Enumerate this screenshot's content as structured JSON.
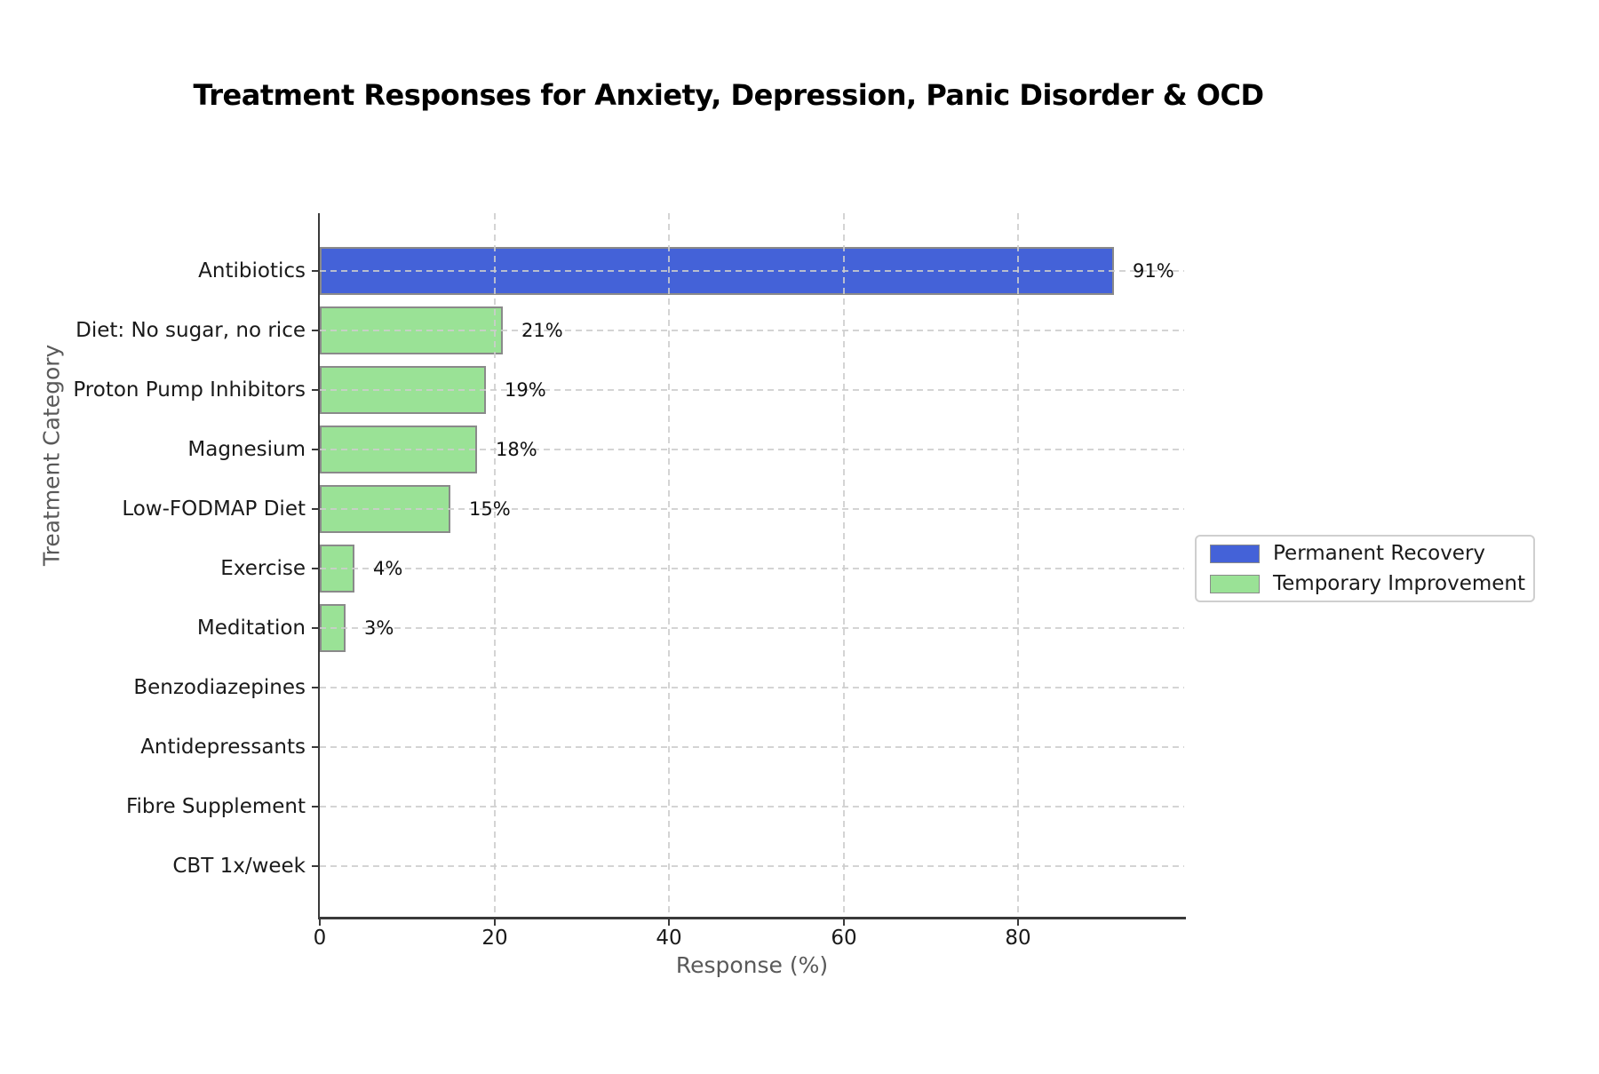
{
  "chart_data": {
    "type": "bar",
    "orientation": "horizontal",
    "title": "Treatment Responses for Anxiety, Depression, Panic Disorder & OCD",
    "xlabel": "Response (%)",
    "ylabel": "Treatment Category",
    "xlim": [
      0,
      99
    ],
    "xticks": [
      0,
      20,
      40,
      60,
      80
    ],
    "grid": true,
    "categories": [
      "Antibiotics",
      "Diet: No sugar, no rice",
      "Proton Pump Inhibitors",
      "Magnesium",
      "Low-FODMAP Diet",
      "Exercise",
      "Meditation",
      "Benzodiazepines",
      "Antidepressants",
      "Fibre Supplement",
      "CBT 1x/week"
    ],
    "bars": [
      {
        "category": "Antibiotics",
        "value": 91,
        "label": "91%",
        "group": "Permanent Recovery"
      },
      {
        "category": "Diet: No sugar, no rice",
        "value": 21,
        "label": "21%",
        "group": "Temporary Improvement"
      },
      {
        "category": "Proton Pump Inhibitors",
        "value": 19,
        "label": "19%",
        "group": "Temporary Improvement"
      },
      {
        "category": "Magnesium",
        "value": 18,
        "label": "18%",
        "group": "Temporary Improvement"
      },
      {
        "category": "Low-FODMAP Diet",
        "value": 15,
        "label": "15%",
        "group": "Temporary Improvement"
      },
      {
        "category": "Exercise",
        "value": 4,
        "label": "4%",
        "group": "Temporary Improvement"
      },
      {
        "category": "Meditation",
        "value": 3,
        "label": "3%",
        "group": "Temporary Improvement"
      },
      {
        "category": "Benzodiazepines",
        "value": 0,
        "label": "",
        "group": "Temporary Improvement"
      },
      {
        "category": "Antidepressants",
        "value": 0,
        "label": "",
        "group": "Temporary Improvement"
      },
      {
        "category": "Fibre Supplement",
        "value": 0,
        "label": "",
        "group": "Temporary Improvement"
      },
      {
        "category": "CBT 1x/week",
        "value": 0,
        "label": "",
        "group": "Temporary Improvement"
      }
    ],
    "legend": {
      "position": "right",
      "entries": [
        {
          "label": "Permanent Recovery",
          "color": "#4462D8"
        },
        {
          "label": "Temporary Improvement",
          "color": "#9AE296"
        }
      ]
    },
    "colors": {
      "permanent_recovery": "#4462D8",
      "temporary_improvement": "#9AE296",
      "bar_edge": "#8a8a8a",
      "grid": "#cdcdcd",
      "spine": "#3a3a3a",
      "axis_label_text": "#595959",
      "tick_text": "#1a1a1a"
    }
  }
}
